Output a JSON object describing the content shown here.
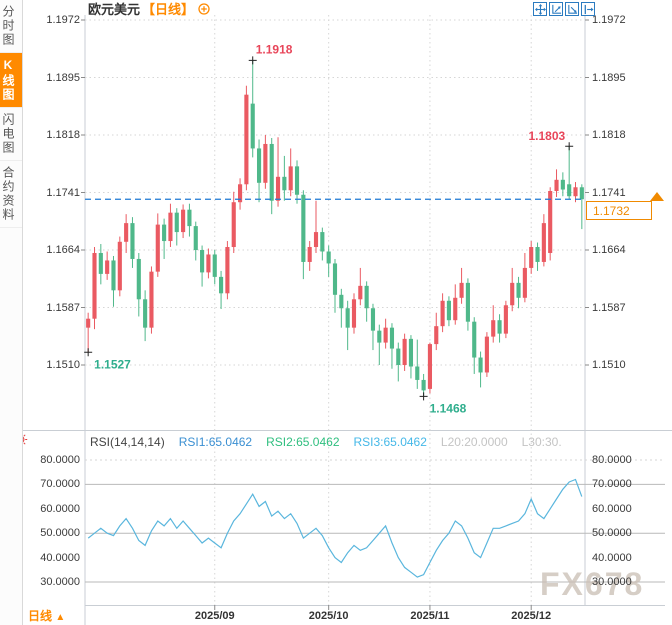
{
  "sidebar": {
    "tabs": [
      {
        "label": "分时图",
        "active": false
      },
      {
        "label": "K线图",
        "active": true
      },
      {
        "label": "闪电图",
        "active": false
      },
      {
        "label": "合约资料",
        "active": false
      }
    ]
  },
  "header": {
    "title": "欧元美元",
    "period": "【日线】"
  },
  "toolbar": {
    "icons": [
      "move-icon",
      "zoom-in-chart-icon",
      "zoom-out-chart-icon",
      "pan-right-icon"
    ]
  },
  "bottom": {
    "tab": "日线",
    "arrow": "▲"
  },
  "watermark": "FX678",
  "colors": {
    "up_candle": "#ea5a62",
    "down_candle": "#4fb88a",
    "accent_orange": "#ff8a00",
    "dashed_price_line": "#1f7ad4",
    "rsi_line": "#5ab6dd",
    "annotation_red": "#e8465a",
    "annotation_green": "#2fae8d",
    "grid_dotted": "#d6d6d6",
    "grid_solid": "#b9b9b9",
    "border": "#c9ced4"
  },
  "chart_data": {
    "type": "candlestick",
    "title": "欧元美元 日线 (EUR/USD daily)",
    "y_axis_labels": [
      "1.1972",
      "1.1895",
      "1.1818",
      "1.1741",
      "1.1664",
      "1.1587",
      "1.1510"
    ],
    "x_axis_labels": [
      {
        "label": "2025/09",
        "index": 20
      },
      {
        "label": "2025/10",
        "index": 38
      },
      {
        "label": "2025/11",
        "index": 54
      },
      {
        "label": "2025/12",
        "index": 70
      }
    ],
    "current_price": "1.1732",
    "annotations": [
      {
        "text": "1.1527",
        "price": 1.1527,
        "index": 0,
        "color": "#2fae8d",
        "placement": "below-right"
      },
      {
        "text": "1.1918",
        "price": 1.1918,
        "index": 26,
        "color": "#e8465a",
        "placement": "above-right"
      },
      {
        "text": "1.1468",
        "price": 1.1468,
        "index": 53,
        "color": "#2fae8d",
        "placement": "below-right"
      },
      {
        "text": "1.1803",
        "price": 1.1803,
        "index": 76,
        "color": "#e8465a",
        "placement": "above-left"
      }
    ],
    "candles": [
      [
        1.156,
        1.158,
        1.1527,
        1.1572
      ],
      [
        1.1572,
        1.1668,
        1.1558,
        1.166
      ],
      [
        1.166,
        1.1672,
        1.1618,
        1.1632
      ],
      [
        1.1632,
        1.1662,
        1.1624,
        1.165
      ],
      [
        1.165,
        1.1656,
        1.1588,
        1.161
      ],
      [
        1.161,
        1.1682,
        1.1602,
        1.1675
      ],
      [
        1.1675,
        1.1712,
        1.166,
        1.17
      ],
      [
        1.17,
        1.1708,
        1.164,
        1.1652
      ],
      [
        1.1652,
        1.166,
        1.1575,
        1.1598
      ],
      [
        1.1598,
        1.161,
        1.1542,
        1.156
      ],
      [
        1.156,
        1.1642,
        1.1552,
        1.1635
      ],
      [
        1.1635,
        1.1713,
        1.1628,
        1.1698
      ],
      [
        1.1698,
        1.1706,
        1.1652,
        1.1676
      ],
      [
        1.1676,
        1.1726,
        1.1668,
        1.1714
      ],
      [
        1.1714,
        1.172,
        1.167,
        1.1688
      ],
      [
        1.1688,
        1.1725,
        1.168,
        1.1718
      ],
      [
        1.1718,
        1.1726,
        1.1682,
        1.1696
      ],
      [
        1.1696,
        1.1702,
        1.165,
        1.1664
      ],
      [
        1.1664,
        1.167,
        1.1615,
        1.1634
      ],
      [
        1.1634,
        1.1666,
        1.1626,
        1.1658
      ],
      [
        1.1658,
        1.1664,
        1.1618,
        1.1628
      ],
      [
        1.1628,
        1.1636,
        1.1585,
        1.1606
      ],
      [
        1.1606,
        1.1676,
        1.1598,
        1.1668
      ],
      [
        1.1668,
        1.1742,
        1.166,
        1.1728
      ],
      [
        1.1728,
        1.176,
        1.1718,
        1.1752
      ],
      [
        1.1752,
        1.1884,
        1.1744,
        1.1872
      ],
      [
        1.186,
        1.1918,
        1.1788,
        1.18
      ],
      [
        1.18,
        1.1812,
        1.1728,
        1.1754
      ],
      [
        1.1754,
        1.1818,
        1.1746,
        1.1806
      ],
      [
        1.1806,
        1.1814,
        1.1712,
        1.173
      ],
      [
        1.173,
        1.1815,
        1.1722,
        1.1762
      ],
      [
        1.1762,
        1.179,
        1.173,
        1.1744
      ],
      [
        1.1744,
        1.18,
        1.1736,
        1.1776
      ],
      [
        1.1776,
        1.1784,
        1.1726,
        1.1738
      ],
      [
        1.1738,
        1.1744,
        1.1625,
        1.1648
      ],
      [
        1.1648,
        1.1676,
        1.1636,
        1.1668
      ],
      [
        1.1668,
        1.173,
        1.166,
        1.1688
      ],
      [
        1.1688,
        1.1694,
        1.165,
        1.1662
      ],
      [
        1.1662,
        1.167,
        1.1628,
        1.1646
      ],
      [
        1.1646,
        1.1652,
        1.158,
        1.1604
      ],
      [
        1.1604,
        1.1612,
        1.156,
        1.1586
      ],
      [
        1.1586,
        1.1596,
        1.153,
        1.156
      ],
      [
        1.156,
        1.1606,
        1.1552,
        1.1598
      ],
      [
        1.1598,
        1.164,
        1.159,
        1.1616
      ],
      [
        1.1616,
        1.1622,
        1.1568,
        1.1586
      ],
      [
        1.1586,
        1.1592,
        1.153,
        1.1556
      ],
      [
        1.1556,
        1.1564,
        1.151,
        1.154
      ],
      [
        1.154,
        1.1572,
        1.1532,
        1.156
      ],
      [
        1.156,
        1.1566,
        1.1505,
        1.1532
      ],
      [
        1.1532,
        1.154,
        1.1488,
        1.151
      ],
      [
        1.151,
        1.1552,
        1.1502,
        1.1545
      ],
      [
        1.1545,
        1.155,
        1.1492,
        1.1508
      ],
      [
        1.1508,
        1.1544,
        1.1478,
        1.149
      ],
      [
        1.149,
        1.1498,
        1.1468,
        1.1476
      ],
      [
        1.1478,
        1.154,
        1.1472,
        1.1538
      ],
      [
        1.1538,
        1.158,
        1.153,
        1.1562
      ],
      [
        1.1562,
        1.1606,
        1.1554,
        1.1596
      ],
      [
        1.1596,
        1.1602,
        1.1562,
        1.157
      ],
      [
        1.157,
        1.1618,
        1.1564,
        1.16
      ],
      [
        1.16,
        1.164,
        1.1592,
        1.162
      ],
      [
        1.162,
        1.1626,
        1.1556,
        1.1568
      ],
      [
        1.1568,
        1.1574,
        1.1498,
        1.152
      ],
      [
        1.152,
        1.1528,
        1.148,
        1.15
      ],
      [
        1.15,
        1.1554,
        1.1494,
        1.1548
      ],
      [
        1.1548,
        1.159,
        1.154,
        1.157
      ],
      [
        1.157,
        1.1578,
        1.154,
        1.1552
      ],
      [
        1.1552,
        1.1596,
        1.1546,
        1.159
      ],
      [
        1.159,
        1.164,
        1.1582,
        1.162
      ],
      [
        1.162,
        1.1628,
        1.1586,
        1.16
      ],
      [
        1.16,
        1.166,
        1.1594,
        1.164
      ],
      [
        1.164,
        1.1676,
        1.1632,
        1.1668
      ],
      [
        1.1668,
        1.1674,
        1.1636,
        1.1648
      ],
      [
        1.1648,
        1.1712,
        1.1642,
        1.17
      ],
      [
        1.166,
        1.1748,
        1.165,
        1.1743
      ],
      [
        1.1743,
        1.1772,
        1.1735,
        1.1758
      ],
      [
        1.1758,
        1.1768,
        1.1736,
        1.1745
      ],
      [
        1.1752,
        1.1803,
        1.1732,
        1.1736
      ],
      [
        1.1736,
        1.1755,
        1.1728,
        1.1748
      ],
      [
        1.1748,
        1.1752,
        1.1692,
        1.1732
      ]
    ],
    "rsi": {
      "label": "RSI(14,14,14)",
      "series": [
        {
          "name": "RSI1:65.0462",
          "color": "#3a8fd2"
        },
        {
          "name": "RSI2:65.0462",
          "color": "#2fbf7f"
        },
        {
          "name": "RSI3:65.0462",
          "color": "#45b8e8"
        }
      ],
      "levels": [
        {
          "name": "L20:20.0000"
        },
        {
          "name": "L30:30."
        }
      ],
      "y_labels": [
        "80.0000",
        "70.0000",
        "60.0000",
        "50.0000",
        "40.0000",
        "30.0000"
      ],
      "gridlines": [
        80,
        70,
        50,
        30
      ],
      "values": [
        48,
        50,
        52,
        50,
        49,
        53,
        56,
        52,
        47,
        45,
        51,
        55,
        53,
        56,
        52,
        55,
        52,
        49,
        46,
        48,
        46,
        44,
        50,
        55,
        58,
        62,
        66,
        61,
        63,
        57,
        59,
        56,
        58,
        54,
        48,
        50,
        52,
        49,
        44,
        40,
        38,
        42,
        45,
        43,
        44,
        47,
        50,
        53,
        46,
        40,
        36,
        34,
        32,
        33,
        38,
        43,
        47,
        50,
        55,
        53,
        48,
        42,
        40,
        46,
        52,
        52,
        53,
        54,
        55,
        58,
        64,
        58,
        56,
        60,
        64,
        68,
        71,
        72,
        65
      ]
    }
  }
}
